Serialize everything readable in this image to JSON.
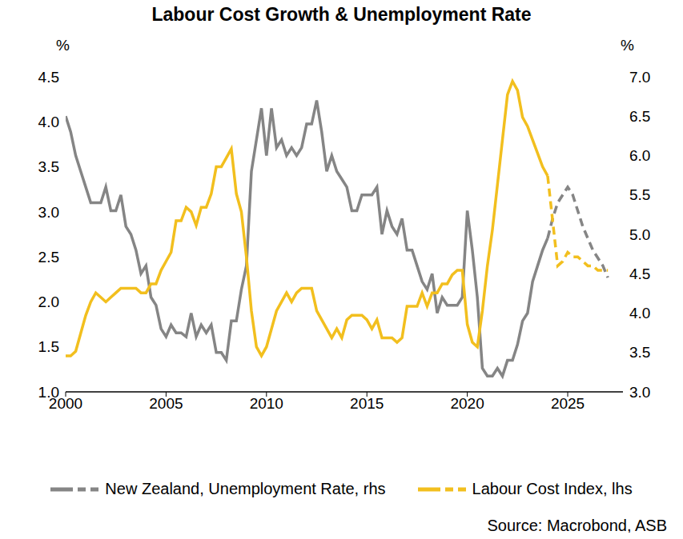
{
  "chart_data": {
    "type": "line",
    "title": "Labour Cost Growth & Unemployment Rate",
    "source": "Source: Macrobond, ASB",
    "y_label": "%",
    "y2_label": "%",
    "x": [
      2000,
      2000.25,
      2000.5,
      2000.75,
      2001,
      2001.25,
      2001.5,
      2001.75,
      2002,
      2002.25,
      2002.5,
      2002.75,
      2003,
      2003.25,
      2003.5,
      2003.75,
      2004,
      2004.25,
      2004.5,
      2004.75,
      2005,
      2005.25,
      2005.5,
      2005.75,
      2006,
      2006.25,
      2006.5,
      2006.75,
      2007,
      2007.25,
      2007.5,
      2007.75,
      2008,
      2008.25,
      2008.5,
      2008.75,
      2009,
      2009.25,
      2009.5,
      2009.75,
      2010,
      2010.25,
      2010.5,
      2010.75,
      2011,
      2011.25,
      2011.5,
      2011.75,
      2012,
      2012.25,
      2012.5,
      2012.75,
      2013,
      2013.25,
      2013.5,
      2013.75,
      2014,
      2014.25,
      2014.5,
      2014.75,
      2015,
      2015.25,
      2015.5,
      2015.75,
      2016,
      2016.25,
      2016.5,
      2016.75,
      2017,
      2017.25,
      2017.5,
      2017.75,
      2018,
      2018.25,
      2018.5,
      2018.75,
      2019,
      2019.25,
      2019.5,
      2019.75,
      2020,
      2020.25,
      2020.5,
      2020.75,
      2021,
      2021.25,
      2021.5,
      2021.75,
      2022,
      2022.25,
      2022.5,
      2022.75,
      2023,
      2023.25,
      2023.5,
      2023.75,
      2024,
      2024.25,
      2024.5,
      2024.75,
      2025,
      2025.25,
      2025.5,
      2025.75,
      2026,
      2026.25,
      2026.5,
      2026.75,
      2027
    ],
    "series": [
      {
        "name": "New Zealand, Unemployment Rate, rhs",
        "color": "#858585",
        "axis": "y2",
        "line_style": "solid",
        "values": [
          6.5,
          6.3,
          6.0,
          5.8,
          5.6,
          5.4,
          5.4,
          5.4,
          5.6,
          5.3,
          5.3,
          5.5,
          5.1,
          5.0,
          4.8,
          4.5,
          4.6,
          4.2,
          4.1,
          3.8,
          3.7,
          3.85,
          3.75,
          3.75,
          3.7,
          4.0,
          3.7,
          3.85,
          3.75,
          3.85,
          3.5,
          3.5,
          3.4,
          3.9,
          3.9,
          4.3,
          4.6,
          5.8,
          6.2,
          6.6,
          6.0,
          6.6,
          6.1,
          6.2,
          6.0,
          6.1,
          6.0,
          6.1,
          6.4,
          6.4,
          6.7,
          6.3,
          5.8,
          6.0,
          5.8,
          5.7,
          5.6,
          5.3,
          5.3,
          5.5,
          5.5,
          5.5,
          5.6,
          5.0,
          5.3,
          5.1,
          5.0,
          5.2,
          4.8,
          4.8,
          4.6,
          4.4,
          4.3,
          4.5,
          4.0,
          4.2,
          4.1,
          4.1,
          4.1,
          4.2,
          5.3,
          4.8,
          4.2,
          3.3,
          3.2,
          3.2,
          3.3,
          3.2,
          3.4,
          3.4,
          3.6,
          3.9,
          4.0,
          4.4,
          4.6,
          4.8,
          4.95,
          null,
          null,
          null,
          null,
          null,
          null,
          null,
          null,
          null,
          null,
          null,
          null
        ]
      },
      {
        "name": "New Zealand, Unemployment Rate, rhs",
        "color": "#858585",
        "axis": "y2",
        "line_style": "dashed",
        "values": [
          null,
          null,
          null,
          null,
          null,
          null,
          null,
          null,
          null,
          null,
          null,
          null,
          null,
          null,
          null,
          null,
          null,
          null,
          null,
          null,
          null,
          null,
          null,
          null,
          null,
          null,
          null,
          null,
          null,
          null,
          null,
          null,
          null,
          null,
          null,
          null,
          null,
          null,
          null,
          null,
          null,
          null,
          null,
          null,
          null,
          null,
          null,
          null,
          null,
          null,
          null,
          null,
          null,
          null,
          null,
          null,
          null,
          null,
          null,
          null,
          null,
          null,
          null,
          null,
          null,
          null,
          null,
          null,
          null,
          null,
          null,
          null,
          null,
          null,
          null,
          null,
          null,
          null,
          null,
          null,
          null,
          null,
          null,
          null,
          null,
          null,
          null,
          null,
          null,
          null,
          null,
          null,
          null,
          null,
          null,
          null,
          4.95,
          5.2,
          5.4,
          5.5,
          5.6,
          5.5,
          5.3,
          5.1,
          4.95,
          4.8,
          4.7,
          4.6,
          4.45
        ]
      },
      {
        "name": "Labour Cost Index, lhs",
        "color": "#F2BF1E",
        "axis": "y",
        "line_style": "solid",
        "values": [
          1.4,
          1.4,
          1.45,
          1.65,
          1.85,
          2.0,
          2.1,
          2.05,
          2.0,
          2.05,
          2.1,
          2.15,
          2.15,
          2.15,
          2.15,
          2.1,
          2.1,
          2.2,
          2.2,
          2.35,
          2.45,
          2.55,
          2.9,
          2.9,
          3.05,
          3.0,
          2.85,
          3.05,
          3.05,
          3.2,
          3.5,
          3.5,
          3.6,
          3.7,
          3.2,
          3.0,
          2.5,
          1.9,
          1.5,
          1.4,
          1.5,
          1.7,
          1.9,
          2.0,
          2.1,
          2.0,
          2.1,
          2.15,
          2.15,
          2.15,
          1.9,
          1.8,
          1.7,
          1.6,
          1.7,
          1.6,
          1.8,
          1.85,
          1.85,
          1.85,
          1.8,
          1.7,
          1.8,
          1.6,
          1.6,
          1.6,
          1.55,
          1.6,
          1.95,
          1.95,
          1.95,
          2.1,
          1.95,
          2.1,
          2.1,
          2.2,
          2.2,
          2.3,
          2.35,
          2.35,
          1.75,
          1.55,
          1.5,
          1.9,
          2.4,
          2.8,
          3.3,
          3.8,
          4.3,
          4.45,
          4.35,
          4.05,
          3.95,
          3.8,
          3.65,
          3.5,
          3.4,
          null,
          null,
          null,
          null,
          null,
          null,
          null,
          null,
          null,
          null,
          null,
          null
        ]
      },
      {
        "name": "Labour Cost Index, lhs",
        "color": "#F2BF1E",
        "axis": "y",
        "line_style": "dashed",
        "values": [
          null,
          null,
          null,
          null,
          null,
          null,
          null,
          null,
          null,
          null,
          null,
          null,
          null,
          null,
          null,
          null,
          null,
          null,
          null,
          null,
          null,
          null,
          null,
          null,
          null,
          null,
          null,
          null,
          null,
          null,
          null,
          null,
          null,
          null,
          null,
          null,
          null,
          null,
          null,
          null,
          null,
          null,
          null,
          null,
          null,
          null,
          null,
          null,
          null,
          null,
          null,
          null,
          null,
          null,
          null,
          null,
          null,
          null,
          null,
          null,
          null,
          null,
          null,
          null,
          null,
          null,
          null,
          null,
          null,
          null,
          null,
          null,
          null,
          null,
          null,
          null,
          null,
          null,
          null,
          null,
          null,
          null,
          null,
          null,
          null,
          null,
          null,
          null,
          null,
          null,
          null,
          null,
          null,
          null,
          null,
          null,
          3.4,
          2.9,
          2.4,
          2.45,
          2.55,
          2.5,
          2.5,
          2.45,
          2.4,
          2.4,
          2.35,
          2.35,
          2.35
        ]
      }
    ],
    "xlim": [
      2000,
      2027.75
    ],
    "xticks": [
      2000,
      2005,
      2010,
      2015,
      2020,
      2025
    ],
    "ylim": [
      1,
      4.5
    ],
    "yticks": [
      {
        "value": 1,
        "label": "1.0"
      },
      1.5,
      {
        "value": 2,
        "label": "2.0"
      },
      2.5,
      {
        "value": 3,
        "label": "3.0"
      },
      3.5,
      {
        "value": 4,
        "label": "4.0"
      },
      4.5
    ],
    "y2lim": [
      3,
      7
    ],
    "y2ticks": [
      {
        "value": 3,
        "label": "3.0"
      },
      3.5,
      {
        "value": 4,
        "label": "4.0"
      },
      4.5,
      {
        "value": 5,
        "label": "5.0"
      },
      5.5,
      {
        "value": 6,
        "label": "6.0"
      },
      6.5,
      {
        "value": 7,
        "label": "7.0"
      }
    ],
    "grid": false,
    "legend": "bottom"
  }
}
